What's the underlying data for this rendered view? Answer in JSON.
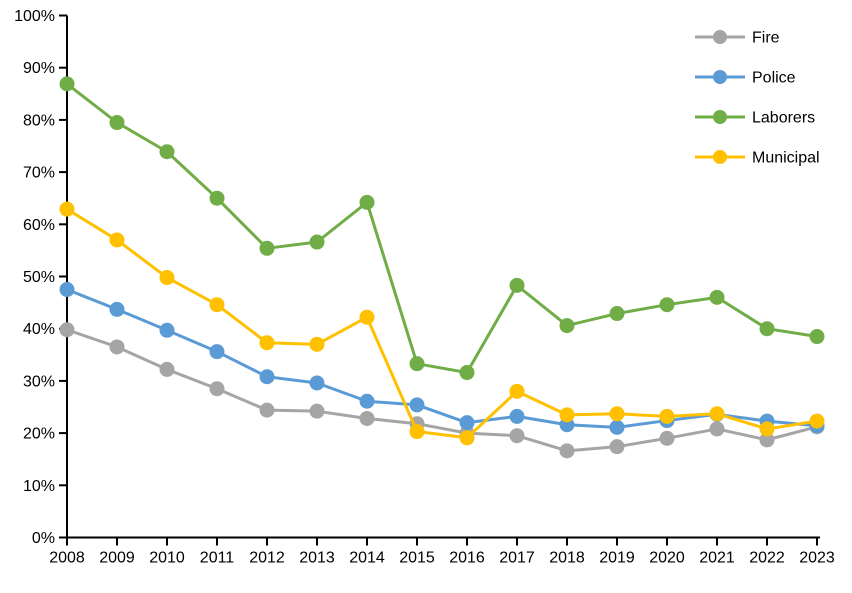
{
  "chart_data": {
    "type": "line",
    "title": "",
    "xlabel": "",
    "ylabel": "",
    "x": [
      2008,
      2009,
      2010,
      2011,
      2012,
      2013,
      2014,
      2015,
      2016,
      2017,
      2018,
      2019,
      2020,
      2021,
      2022,
      2023
    ],
    "series": [
      {
        "name": "Fire",
        "color": "#A5A5A5",
        "values": [
          39.8,
          36.5,
          32.2,
          28.5,
          24.4,
          24.2,
          22.8,
          21.8,
          20.0,
          19.5,
          16.6,
          17.4,
          19.0,
          20.8,
          18.7,
          21.2
        ]
      },
      {
        "name": "Police",
        "color": "#5B9BD5",
        "values": [
          47.5,
          43.7,
          39.7,
          35.6,
          30.8,
          29.6,
          26.1,
          25.4,
          22.0,
          23.2,
          21.6,
          21.1,
          22.4,
          23.6,
          22.3,
          21.4
        ]
      },
      {
        "name": "Laborers",
        "color": "#70AD47",
        "values": [
          86.9,
          79.5,
          73.9,
          65.0,
          55.4,
          56.6,
          64.2,
          33.3,
          31.6,
          48.3,
          40.6,
          42.9,
          44.6,
          46.0,
          40.0,
          38.5
        ]
      },
      {
        "name": "Municipal",
        "color": "#FFC000",
        "values": [
          62.9,
          57.0,
          49.8,
          44.6,
          37.3,
          37.0,
          42.2,
          20.3,
          19.1,
          28.0,
          23.5,
          23.7,
          23.2,
          23.7,
          20.8,
          22.3
        ]
      }
    ],
    "ylim": [
      0,
      100
    ],
    "ytick_step": 10,
    "ytick_suffix": "%",
    "grid": false,
    "legend_position": "top-right",
    "legend_labels": [
      "Fire",
      "Police",
      "Laborers",
      "Municipal"
    ],
    "axis_color": "#000000",
    "background": "#FFFFFF"
  }
}
